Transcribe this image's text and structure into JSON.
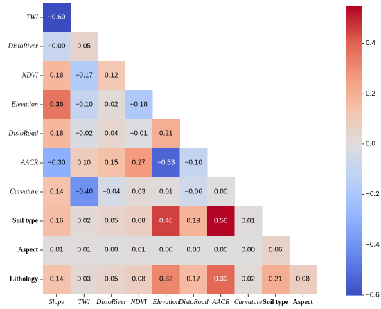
{
  "chart_data": {
    "type": "heatmap",
    "variables": [
      {
        "name": "Slope",
        "style": "italic"
      },
      {
        "name": "TWI",
        "style": "italic"
      },
      {
        "name": "DistoRiver",
        "style": "italic"
      },
      {
        "name": "NDVI",
        "style": "italic"
      },
      {
        "name": "Elevation",
        "style": "italic"
      },
      {
        "name": "DistoRoad",
        "style": "italic"
      },
      {
        "name": "AACR",
        "style": "italic"
      },
      {
        "name": "Curvature",
        "style": "italic"
      },
      {
        "name": "Soil type",
        "style": "bold"
      },
      {
        "name": "Aspect",
        "style": "bold"
      },
      {
        "name": "Lithology",
        "style": "bold"
      }
    ],
    "x_labels": [
      "Slope",
      "TWI",
      "DistoRiver",
      "NDVI",
      "Elevation",
      "DistoRoad",
      "AACR",
      "Curvature",
      "Soil type",
      "Aspect"
    ],
    "y_labels": [
      "TWI",
      "DistoRiver",
      "NDVI",
      "Elevation",
      "DistoRoad",
      "AACR",
      "Curvature",
      "Soil type",
      "Aspect",
      "Lithology"
    ],
    "rows": [
      {
        "label": "TWI",
        "values": [
          -0.6
        ]
      },
      {
        "label": "DistoRiver",
        "values": [
          -0.09,
          0.05
        ]
      },
      {
        "label": "NDVI",
        "values": [
          0.18,
          -0.17,
          0.12
        ]
      },
      {
        "label": "Elevation",
        "values": [
          0.36,
          -0.1,
          0.02,
          -0.18
        ]
      },
      {
        "label": "DistoRoad",
        "values": [
          0.18,
          -0.02,
          0.04,
          -0.01,
          0.21
        ]
      },
      {
        "label": "AACR",
        "values": [
          -0.3,
          0.1,
          0.15,
          0.27,
          -0.53,
          -0.1
        ]
      },
      {
        "label": "Curvature",
        "values": [
          0.14,
          -0.4,
          -0.04,
          0.03,
          0.01,
          -0.06,
          0.0
        ]
      },
      {
        "label": "Soil type",
        "values": [
          0.16,
          0.02,
          0.05,
          0.08,
          0.46,
          0.19,
          0.56,
          0.01
        ]
      },
      {
        "label": "Aspect",
        "values": [
          0.01,
          0.01,
          0.0,
          0.01,
          0.0,
          0.0,
          0.0,
          0.0,
          0.06
        ]
      },
      {
        "label": "Lithology",
        "values": [
          0.14,
          0.03,
          0.05,
          0.08,
          0.32,
          0.17,
          0.39,
          0.02,
          0.21,
          0.08
        ]
      }
    ],
    "value_labels": [
      [
        "−0.60"
      ],
      [
        "−0.09",
        "0.05"
      ],
      [
        "0.18",
        "−0.17",
        "0.12"
      ],
      [
        "0.36",
        "−0.10",
        "0.02",
        "−0.18"
      ],
      [
        "0.18",
        "−0.02",
        "0.04",
        "−0.01",
        "0.21"
      ],
      [
        "−0.30",
        "0.10",
        "0.15",
        "0.27",
        "−0.53",
        "−0.10"
      ],
      [
        "0.14",
        "−0.40",
        "−0.04",
        "0.03",
        "0.01",
        "−0.06",
        "0.00"
      ],
      [
        "0.16",
        "0.02",
        "0.05",
        "0.08",
        "0.46",
        "0.19",
        "0.56",
        "0.01"
      ],
      [
        "0.01",
        "0.01",
        "0.00",
        "0.01",
        "0.00",
        "0.00",
        "0.00",
        "0.00",
        "0.06"
      ],
      [
        "0.14",
        "0.03",
        "0.05",
        "0.08",
        "0.32",
        "0.17",
        "0.39",
        "0.02",
        "0.21",
        "0.08"
      ]
    ],
    "colorbar": {
      "range": [
        -0.6,
        0.55
      ],
      "ticks": [
        0.4,
        0.2,
        0.0,
        -0.2,
        -0.4,
        -0.6
      ],
      "tick_labels": [
        "0.4",
        "0.2",
        "0.0",
        "−0.2",
        "−0.4",
        "−0.6"
      ],
      "colormap": "coolwarm",
      "colors": {
        "neg_end": "#3b4cc0",
        "mid": "#dddddd",
        "pos_end": "#d6172a"
      }
    },
    "title": "",
    "xlabel": "",
    "ylabel": ""
  }
}
